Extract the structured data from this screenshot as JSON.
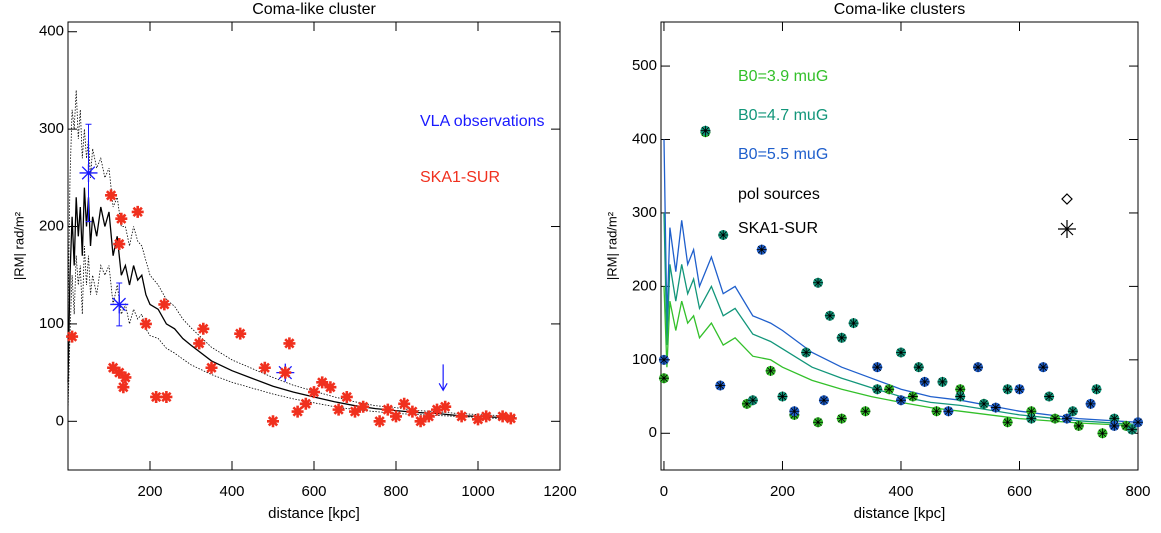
{
  "chart_data": [
    {
      "type": "scatter",
      "title": "Coma-like cluster",
      "x_label": "distance [kpc]",
      "y_label": "|RM| rad/m²",
      "xlim": [
        0,
        1200
      ],
      "ylim": [
        -50,
        410
      ],
      "xticks": [
        200,
        400,
        600,
        800,
        1000,
        1200
      ],
      "yticks": [
        0,
        100,
        200,
        300,
        400
      ],
      "series": [
        {
          "name": "VLA observations",
          "color": "#1a1aff",
          "marker": "asterisk",
          "x": [
            50,
            125,
            530,
            915
          ],
          "values": [
            255,
            120,
            50,
            40
          ],
          "errors": [
            50,
            22,
            null,
            null
          ],
          "upper_limit": [
            false,
            false,
            false,
            true
          ]
        },
        {
          "name": "SKA1-SUR",
          "color": "#f0301e",
          "marker": "asterisk",
          "x": [
            10,
            105,
            130,
            170,
            125,
            110,
            125,
            140,
            135,
            190,
            215,
            240,
            235,
            330,
            320,
            350,
            420,
            480,
            500,
            540,
            530,
            560,
            580,
            600,
            620,
            640,
            660,
            680,
            700,
            720,
            760,
            780,
            800,
            820,
            840,
            860,
            880,
            900,
            920,
            960,
            1000,
            1020,
            1060,
            1080
          ],
          "values": [
            87,
            232,
            208,
            215,
            182,
            55,
            50,
            45,
            35,
            100,
            25,
            25,
            120,
            95,
            80,
            55,
            90,
            55,
            0,
            80,
            50,
            10,
            18,
            30,
            40,
            35,
            12,
            25,
            10,
            15,
            0,
            12,
            5,
            18,
            10,
            0,
            5,
            12,
            15,
            5,
            2,
            5,
            5,
            3
          ]
        }
      ],
      "lines": [
        {
          "color": "#000000",
          "style": "solid",
          "x": [
            0,
            5,
            10,
            15,
            20,
            25,
            30,
            35,
            40,
            45,
            50,
            55,
            60,
            70,
            80,
            90,
            100,
            110,
            120,
            130,
            140,
            150,
            160,
            170,
            180,
            190,
            200,
            220,
            240,
            260,
            280,
            300,
            350,
            400,
            450,
            500,
            550,
            600,
            650,
            700,
            750,
            800,
            850,
            900,
            950,
            1000,
            1050,
            1090
          ],
          "values": [
            40,
            150,
            210,
            160,
            230,
            190,
            220,
            170,
            240,
            200,
            230,
            180,
            210,
            190,
            220,
            200,
            215,
            170,
            190,
            150,
            160,
            140,
            160,
            145,
            150,
            130,
            120,
            115,
            100,
            95,
            85,
            78,
            62,
            52,
            44,
            36,
            30,
            25,
            20,
            16,
            13,
            11,
            9,
            8,
            6,
            5,
            4,
            4
          ]
        },
        {
          "color": "#000000",
          "style": "dotted",
          "x": [
            0,
            5,
            10,
            15,
            20,
            25,
            30,
            35,
            40,
            45,
            50,
            55,
            60,
            70,
            80,
            90,
            100,
            110,
            120,
            130,
            140,
            150,
            160,
            170,
            180,
            190,
            200,
            220,
            240,
            260,
            280,
            300,
            350,
            400,
            450,
            500,
            550,
            600,
            650,
            700,
            750,
            800,
            850,
            900,
            950,
            1000,
            1050,
            1090
          ],
          "values": [
            100,
            250,
            320,
            300,
            340,
            290,
            320,
            270,
            300,
            270,
            290,
            250,
            280,
            260,
            270,
            250,
            260,
            220,
            230,
            200,
            200,
            180,
            200,
            185,
            180,
            165,
            150,
            140,
            125,
            118,
            105,
            96,
            76,
            63,
            54,
            45,
            37,
            31,
            25,
            20,
            16,
            14,
            11,
            10,
            8,
            7,
            6,
            5
          ]
        },
        {
          "color": "#000000",
          "style": "dotted",
          "x": [
            0,
            5,
            10,
            15,
            20,
            25,
            30,
            35,
            40,
            45,
            50,
            55,
            60,
            70,
            80,
            90,
            100,
            110,
            120,
            130,
            140,
            150,
            160,
            170,
            180,
            190,
            200,
            220,
            240,
            260,
            280,
            300,
            350,
            400,
            450,
            500,
            550,
            600,
            650,
            700,
            750,
            800,
            850,
            900,
            950,
            1000,
            1050,
            1090
          ],
          "values": [
            10,
            90,
            150,
            110,
            170,
            140,
            160,
            110,
            180,
            140,
            170,
            130,
            150,
            130,
            160,
            150,
            160,
            120,
            140,
            110,
            120,
            100,
            115,
            105,
            110,
            95,
            88,
            85,
            75,
            70,
            64,
            58,
            48,
            40,
            34,
            28,
            23,
            19,
            15,
            12,
            10,
            8,
            7,
            6,
            5,
            4,
            3,
            3
          ]
        }
      ]
    },
    {
      "type": "scatter",
      "title": "Coma-like clusters",
      "x_label": "distance [kpc]",
      "y_label": "|RM| rad/m²",
      "xlim": [
        -5,
        800
      ],
      "ylim": [
        -50,
        560
      ],
      "xticks": [
        0,
        200,
        400,
        600,
        800
      ],
      "yticks": [
        0,
        100,
        200,
        300,
        400,
        500
      ],
      "series": [
        {
          "name": "B0=3.9 muG",
          "color": "#33c02a",
          "marker": "dot-asterisk",
          "x": [
            0,
            70,
            140,
            180,
            220,
            260,
            300,
            340,
            380,
            420,
            460,
            500,
            540,
            580,
            620,
            660,
            700,
            740,
            780
          ],
          "values": [
            75,
            410,
            40,
            85,
            25,
            15,
            20,
            30,
            60,
            50,
            30,
            60,
            40,
            15,
            30,
            20,
            10,
            0,
            10
          ]
        },
        {
          "name": "B0=4.7 muG",
          "color": "#12967a",
          "marker": "dot-asterisk",
          "x": [
            70,
            100,
            150,
            200,
            240,
            260,
            280,
            300,
            320,
            360,
            400,
            430,
            470,
            500,
            540,
            580,
            620,
            650,
            690,
            730,
            760,
            790
          ],
          "values": [
            412,
            270,
            45,
            50,
            110,
            205,
            160,
            130,
            150,
            60,
            110,
            90,
            70,
            50,
            40,
            60,
            20,
            50,
            30,
            60,
            20,
            5
          ]
        },
        {
          "name": "B0=5.5 muG",
          "color": "#1f5fcc",
          "marker": "dot-asterisk",
          "x": [
            0,
            95,
            165,
            220,
            270,
            360,
            400,
            440,
            480,
            530,
            560,
            600,
            640,
            680,
            720,
            760,
            800
          ],
          "values": [
            100,
            65,
            250,
            30,
            45,
            90,
            45,
            70,
            30,
            90,
            35,
            60,
            90,
            20,
            40,
            10,
            15
          ]
        }
      ],
      "legend_notes": [
        "pol sources",
        "SKA1-SUR"
      ],
      "lines": [
        {
          "color": "#1f5fcc",
          "style": "solid",
          "x": [
            0,
            5,
            10,
            20,
            30,
            40,
            50,
            60,
            80,
            100,
            120,
            150,
            180,
            200,
            250,
            300,
            350,
            400,
            450,
            500,
            600,
            700,
            800
          ],
          "values": [
            400,
            150,
            280,
            220,
            290,
            230,
            250,
            200,
            240,
            190,
            200,
            160,
            150,
            140,
            110,
            90,
            75,
            60,
            50,
            45,
            30,
            20,
            15
          ]
        },
        {
          "color": "#12967a",
          "style": "solid",
          "x": [
            0,
            5,
            10,
            20,
            30,
            40,
            50,
            60,
            80,
            100,
            120,
            150,
            180,
            200,
            250,
            300,
            350,
            400,
            450,
            500,
            600,
            700,
            800
          ],
          "values": [
            300,
            120,
            230,
            180,
            230,
            190,
            210,
            170,
            200,
            160,
            170,
            135,
            125,
            115,
            90,
            75,
            62,
            50,
            42,
            38,
            25,
            17,
            12
          ]
        },
        {
          "color": "#33c02a",
          "style": "solid",
          "x": [
            0,
            5,
            10,
            20,
            30,
            40,
            50,
            60,
            80,
            100,
            120,
            150,
            180,
            200,
            250,
            300,
            350,
            400,
            450,
            500,
            600,
            700,
            800
          ],
          "values": [
            200,
            90,
            180,
            140,
            180,
            150,
            160,
            130,
            150,
            120,
            130,
            105,
            100,
            90,
            72,
            60,
            50,
            42,
            35,
            30,
            20,
            14,
            10
          ]
        }
      ]
    }
  ]
}
